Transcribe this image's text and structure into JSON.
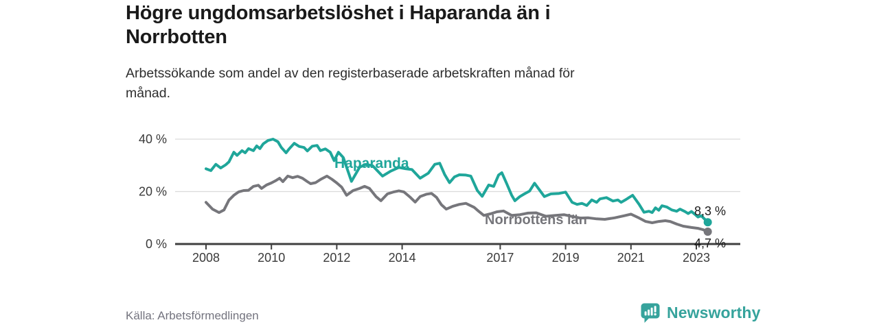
{
  "header": {
    "title_lines": [
      "Högre ungdomsarbetslöshet i Haparanda än i",
      "Norrbotten"
    ],
    "subtitle_lines": [
      "Arbetssökande som andel av den registerbaserade arbetskraften månad för",
      "månad."
    ]
  },
  "footer": {
    "source": "Källa: Arbetsförmedlingen",
    "brand": {
      "name": "Newsworthy",
      "color": "#36a39c",
      "icon": "bar-chart-speech-bubble-icon"
    }
  },
  "colors": {
    "haparanda": "#1fa69a",
    "norrbotten": "#76767b",
    "grid": "#dadada",
    "axis_line": "#3f3f3f",
    "axis_text": "#3a3a3a",
    "value_label": "#1b1b1b"
  },
  "chart_data": {
    "type": "line",
    "x_unit": "decimal_year",
    "x_range": [
      2008.0,
      2023.35
    ],
    "ylim": [
      0,
      43
    ],
    "grid": "horizontal",
    "legend": "inline-series-labels",
    "yticks": [
      {
        "value": 40,
        "label": "40 %"
      },
      {
        "value": 20,
        "label": "20 %"
      },
      {
        "value": 0,
        "label": "0 %"
      }
    ],
    "xticks": [
      {
        "value": 2008,
        "label": "2008"
      },
      {
        "value": 2010,
        "label": "2010"
      },
      {
        "value": 2012,
        "label": "2012"
      },
      {
        "value": 2014,
        "label": "2014"
      },
      {
        "value": 2017,
        "label": "2017"
      },
      {
        "value": 2019,
        "label": "2019"
      },
      {
        "value": 2021,
        "label": "2021"
      },
      {
        "value": 2023,
        "label": "2023"
      }
    ],
    "series": [
      {
        "name": "Haparanda",
        "color": "#1fa69a",
        "end_label": "8,3 %",
        "final_value": 8.3,
        "points": [
          [
            2008.0,
            28.7
          ],
          [
            2008.15,
            28.0
          ],
          [
            2008.3,
            30.4
          ],
          [
            2008.45,
            29.0
          ],
          [
            2008.6,
            30.2
          ],
          [
            2008.7,
            31.3
          ],
          [
            2008.85,
            35.0
          ],
          [
            2008.95,
            33.8
          ],
          [
            2009.1,
            35.6
          ],
          [
            2009.2,
            34.8
          ],
          [
            2009.3,
            36.4
          ],
          [
            2009.45,
            35.6
          ],
          [
            2009.55,
            37.4
          ],
          [
            2009.65,
            36.4
          ],
          [
            2009.75,
            38.2
          ],
          [
            2009.9,
            39.5
          ],
          [
            2010.05,
            40.0
          ],
          [
            2010.2,
            39.0
          ],
          [
            2010.3,
            36.9
          ],
          [
            2010.45,
            34.8
          ],
          [
            2010.55,
            36.4
          ],
          [
            2010.7,
            38.4
          ],
          [
            2010.85,
            37.2
          ],
          [
            2011.0,
            36.8
          ],
          [
            2011.1,
            35.5
          ],
          [
            2011.25,
            37.3
          ],
          [
            2011.4,
            37.6
          ],
          [
            2011.5,
            35.6
          ],
          [
            2011.65,
            36.3
          ],
          [
            2011.8,
            35.0
          ],
          [
            2011.92,
            31.8
          ],
          [
            2012.05,
            35.0
          ],
          [
            2012.2,
            33.0
          ],
          [
            2012.45,
            23.9
          ],
          [
            2012.7,
            29.3
          ],
          [
            2012.9,
            30.4
          ],
          [
            2013.1,
            29.8
          ],
          [
            2013.4,
            25.9
          ],
          [
            2013.65,
            27.8
          ],
          [
            2013.9,
            29.2
          ],
          [
            2014.1,
            28.7
          ],
          [
            2014.3,
            28.4
          ],
          [
            2014.55,
            25.1
          ],
          [
            2014.8,
            27.0
          ],
          [
            2015.0,
            30.4
          ],
          [
            2015.15,
            30.8
          ],
          [
            2015.3,
            26.5
          ],
          [
            2015.45,
            23.4
          ],
          [
            2015.6,
            25.6
          ],
          [
            2015.75,
            26.4
          ],
          [
            2015.95,
            26.3
          ],
          [
            2016.1,
            25.9
          ],
          [
            2016.3,
            20.4
          ],
          [
            2016.45,
            18.2
          ],
          [
            2016.65,
            22.5
          ],
          [
            2016.8,
            22.0
          ],
          [
            2016.95,
            26.3
          ],
          [
            2017.05,
            27.2
          ],
          [
            2017.2,
            23.0
          ],
          [
            2017.35,
            18.6
          ],
          [
            2017.45,
            16.5
          ],
          [
            2017.6,
            18.1
          ],
          [
            2017.75,
            19.2
          ],
          [
            2017.9,
            20.2
          ],
          [
            2018.05,
            23.2
          ],
          [
            2018.35,
            18.1
          ],
          [
            2018.55,
            19.1
          ],
          [
            2018.8,
            19.3
          ],
          [
            2019.0,
            19.8
          ],
          [
            2019.2,
            15.9
          ],
          [
            2019.35,
            15.1
          ],
          [
            2019.5,
            15.5
          ],
          [
            2019.65,
            14.7
          ],
          [
            2019.8,
            16.8
          ],
          [
            2019.95,
            15.9
          ],
          [
            2020.05,
            17.2
          ],
          [
            2020.25,
            17.7
          ],
          [
            2020.45,
            16.4
          ],
          [
            2020.6,
            16.8
          ],
          [
            2020.7,
            15.9
          ],
          [
            2020.85,
            17.0
          ],
          [
            2020.95,
            17.8
          ],
          [
            2021.05,
            18.6
          ],
          [
            2021.25,
            15.1
          ],
          [
            2021.4,
            12.1
          ],
          [
            2021.55,
            12.5
          ],
          [
            2021.65,
            12.0
          ],
          [
            2021.75,
            13.8
          ],
          [
            2021.85,
            12.9
          ],
          [
            2021.95,
            14.6
          ],
          [
            2022.1,
            14.1
          ],
          [
            2022.25,
            13.0
          ],
          [
            2022.4,
            12.5
          ],
          [
            2022.5,
            13.3
          ],
          [
            2022.65,
            12.4
          ],
          [
            2022.75,
            11.6
          ],
          [
            2022.85,
            12.4
          ],
          [
            2022.95,
            11.4
          ],
          [
            2023.05,
            10.3
          ],
          [
            2023.15,
            10.8
          ],
          [
            2023.35,
            8.3
          ]
        ]
      },
      {
        "name": "Norrbottens län",
        "color": "#76767b",
        "end_label": "4,7 %",
        "final_value": 4.7,
        "points": [
          [
            2008.0,
            15.9
          ],
          [
            2008.2,
            13.3
          ],
          [
            2008.4,
            12.0
          ],
          [
            2008.55,
            13.0
          ],
          [
            2008.7,
            16.7
          ],
          [
            2008.85,
            18.6
          ],
          [
            2009.0,
            19.9
          ],
          [
            2009.15,
            20.4
          ],
          [
            2009.3,
            20.5
          ],
          [
            2009.45,
            22.0
          ],
          [
            2009.6,
            22.4
          ],
          [
            2009.7,
            21.2
          ],
          [
            2009.85,
            22.5
          ],
          [
            2010.0,
            23.3
          ],
          [
            2010.15,
            24.3
          ],
          [
            2010.25,
            25.1
          ],
          [
            2010.35,
            23.8
          ],
          [
            2010.5,
            25.9
          ],
          [
            2010.65,
            25.3
          ],
          [
            2010.8,
            25.8
          ],
          [
            2010.95,
            25.1
          ],
          [
            2011.1,
            23.8
          ],
          [
            2011.2,
            23.0
          ],
          [
            2011.35,
            23.4
          ],
          [
            2011.5,
            24.6
          ],
          [
            2011.7,
            25.9
          ],
          [
            2011.85,
            24.7
          ],
          [
            2012.0,
            23.3
          ],
          [
            2012.15,
            21.7
          ],
          [
            2012.3,
            18.6
          ],
          [
            2012.5,
            20.4
          ],
          [
            2012.7,
            21.2
          ],
          [
            2012.85,
            22.0
          ],
          [
            2013.0,
            21.2
          ],
          [
            2013.2,
            18.1
          ],
          [
            2013.35,
            16.5
          ],
          [
            2013.55,
            19.1
          ],
          [
            2013.75,
            19.9
          ],
          [
            2013.9,
            20.3
          ],
          [
            2014.05,
            19.9
          ],
          [
            2014.25,
            17.8
          ],
          [
            2014.4,
            16.0
          ],
          [
            2014.55,
            18.1
          ],
          [
            2014.75,
            19.0
          ],
          [
            2014.9,
            19.3
          ],
          [
            2015.05,
            17.8
          ],
          [
            2015.2,
            15.0
          ],
          [
            2015.35,
            13.3
          ],
          [
            2015.55,
            14.4
          ],
          [
            2015.75,
            15.1
          ],
          [
            2015.95,
            15.5
          ],
          [
            2016.2,
            14.0
          ],
          [
            2016.35,
            12.4
          ],
          [
            2016.5,
            10.9
          ],
          [
            2016.7,
            11.5
          ],
          [
            2016.9,
            12.3
          ],
          [
            2017.1,
            12.6
          ],
          [
            2017.35,
            10.9
          ],
          [
            2017.6,
            11.2
          ],
          [
            2017.85,
            11.8
          ],
          [
            2018.1,
            11.9
          ],
          [
            2018.4,
            10.6
          ],
          [
            2018.7,
            10.9
          ],
          [
            2018.95,
            11.2
          ],
          [
            2019.2,
            10.5
          ],
          [
            2019.45,
            9.9
          ],
          [
            2019.7,
            10.0
          ],
          [
            2019.95,
            9.6
          ],
          [
            2020.2,
            9.4
          ],
          [
            2020.5,
            10.0
          ],
          [
            2020.8,
            10.8
          ],
          [
            2021.0,
            11.4
          ],
          [
            2021.25,
            9.9
          ],
          [
            2021.45,
            8.6
          ],
          [
            2021.65,
            8.1
          ],
          [
            2021.85,
            8.6
          ],
          [
            2022.05,
            8.9
          ],
          [
            2022.2,
            8.6
          ],
          [
            2022.4,
            7.6
          ],
          [
            2022.6,
            6.8
          ],
          [
            2022.85,
            6.3
          ],
          [
            2023.05,
            6.0
          ],
          [
            2023.2,
            5.5
          ],
          [
            2023.35,
            4.7
          ]
        ]
      }
    ]
  }
}
